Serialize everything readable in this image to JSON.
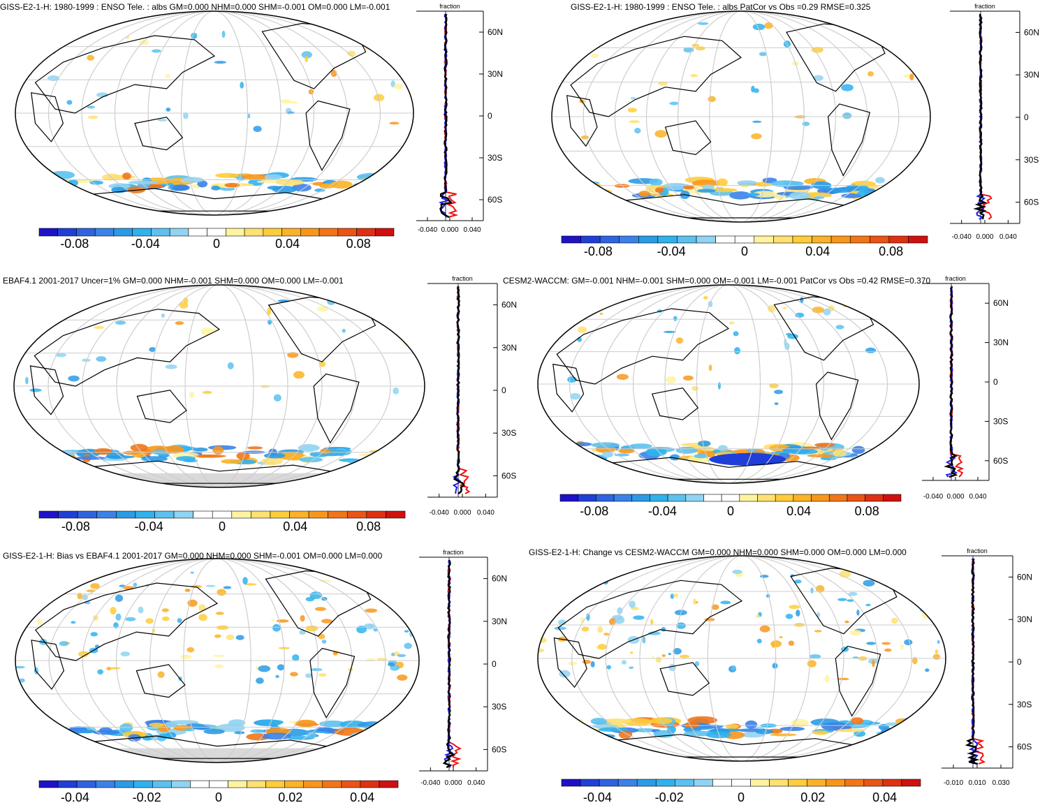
{
  "chart_data": [
    {
      "type": "heatmap",
      "title": "GISS-E2-1-H: 1980-1999 : ENSO Tele. : albs GM=0.000 NHM=0.000 SHM=-0.001 OM=0.000 LM=-0.001",
      "colorbar": {
        "range": [
          -0.1,
          0.1
        ],
        "tick_labels": [
          "-0.08",
          "-0.04",
          "0",
          "0.04",
          "0.08"
        ]
      },
      "zonal_profile": {
        "xlabel": "fraction",
        "x_tick_labels": [
          "-0.040",
          "0.000",
          "0.040"
        ],
        "lat_tick_labels": [
          "60N",
          "30N",
          "0",
          "30S",
          "60S"
        ],
        "series": [
          "red",
          "blue",
          "black"
        ]
      }
    },
    {
      "type": "heatmap",
      "title": "GISS-E2-1-H: 1980-1999 : ENSO Tele. : albs PatCor vs Obs =0.29 RMSE=0.325",
      "colorbar": {
        "range": [
          -0.1,
          0.1
        ],
        "tick_labels": [
          "-0.08",
          "-0.04",
          "0",
          "0.04",
          "0.08"
        ]
      },
      "zonal_profile": {
        "xlabel": "fraction",
        "x_tick_labels": [
          "-0.040",
          "0.000",
          "0.040"
        ],
        "lat_tick_labels": [
          "60N",
          "30N",
          "0",
          "30S",
          "60S"
        ],
        "series": [
          "red",
          "blue",
          "black"
        ]
      }
    },
    {
      "type": "heatmap",
      "title": "EBAF4.1 2001-2017 Uncer=1% GM=0.000 NHM=-0.001 SHM=0.000 OM=0.000 LM=-0.001",
      "colorbar": {
        "range": [
          -0.1,
          0.1
        ],
        "tick_labels": [
          "-0.08",
          "-0.04",
          "0",
          "0.04",
          "0.08"
        ]
      },
      "zonal_profile": {
        "xlabel": "fraction",
        "x_tick_labels": [
          "-0.040",
          "0.000",
          "0.040"
        ],
        "lat_tick_labels": [
          "60N",
          "30N",
          "0",
          "30S",
          "60S"
        ],
        "series": [
          "red",
          "blue",
          "black"
        ]
      }
    },
    {
      "type": "heatmap",
      "title": "CESM2-WACCM: GM=-0.001 NHM=-0.001 SHM=0.000 OM=-0.001 LM=-0.001 PatCor vs Obs =0.42 RMSE=0.370",
      "colorbar": {
        "range": [
          -0.1,
          0.1
        ],
        "tick_labels": [
          "-0.08",
          "-0.04",
          "0",
          "0.04",
          "0.08"
        ]
      },
      "zonal_profile": {
        "xlabel": "fraction",
        "x_tick_labels": [
          "-0.040",
          "0.000",
          "0.040"
        ],
        "lat_tick_labels": [
          "60N",
          "30N",
          "0",
          "30S",
          "60S"
        ],
        "series": [
          "red",
          "blue",
          "black"
        ]
      }
    },
    {
      "type": "heatmap",
      "title": "GISS-E2-1-H: Bias vs EBAF4.1 2001-2017 GM=0.000 NHM=0.000 SHM=-0.001 OM=0.000 LM=0.000",
      "colorbar": {
        "range": [
          -0.05,
          0.05
        ],
        "tick_labels": [
          "-0.04",
          "-0.02",
          "0",
          "0.02",
          "0.04"
        ]
      },
      "zonal_profile": {
        "xlabel": "fraction",
        "x_tick_labels": [
          "-0.040",
          "0.000",
          "0.040"
        ],
        "lat_tick_labels": [
          "60N",
          "30N",
          "0",
          "30S",
          "60S"
        ],
        "series": [
          "red",
          "blue",
          "black"
        ]
      }
    },
    {
      "type": "heatmap",
      "title": "GISS-E2-1-H: Change vs CESM2-WACCM GM=0.000 NHM=0.000 SHM=0.000 OM=0.000 LM=0.000",
      "colorbar": {
        "range": [
          -0.05,
          0.05
        ],
        "tick_labels": [
          "-0.04",
          "-0.02",
          "0",
          "0.02",
          "0.04"
        ]
      },
      "zonal_profile": {
        "xlabel": "fraction",
        "x_tick_labels": [
          "-0.010",
          "0.010",
          "0.030"
        ],
        "lat_tick_labels": [
          "60N",
          "30N",
          "0",
          "30S",
          "60S"
        ],
        "series": [
          "red",
          "blue",
          "black"
        ]
      }
    }
  ],
  "colors": {
    "colorbar": [
      "#1e12c8",
      "#1f3fd8",
      "#2f63e0",
      "#3b82e8",
      "#2b9be6",
      "#2fb2ee",
      "#5cc1ef",
      "#90d3f2",
      "#ffffff",
      "#ffffff",
      "#fff3a0",
      "#ffe070",
      "#ffcc3a",
      "#fbb226",
      "#f8961b",
      "#f27518",
      "#ea5414",
      "#de3012",
      "#d0100f"
    ],
    "land_outline": "#000000",
    "grid": "#cccccc",
    "missing": "#d9d9d9",
    "series_red": "#ee1111",
    "series_blue": "#1a1ae6",
    "series_black": "#000000"
  }
}
